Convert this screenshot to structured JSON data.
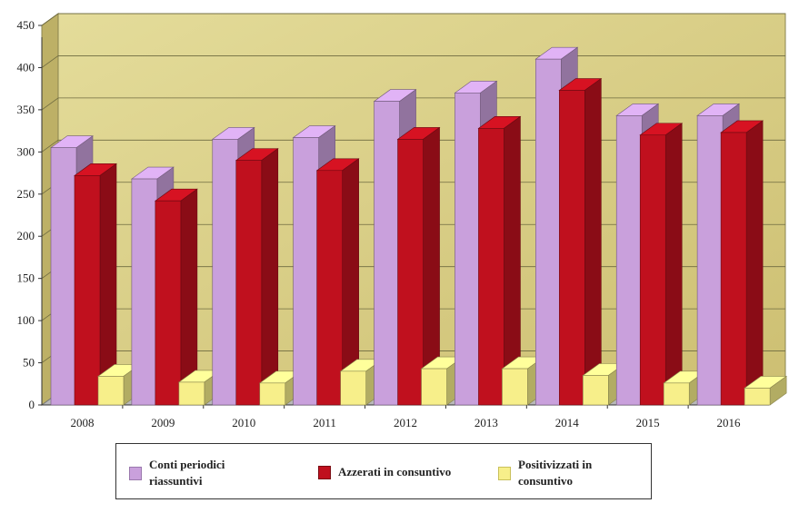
{
  "chart_data": {
    "type": "bar",
    "title": "",
    "xlabel": "",
    "ylabel": "",
    "ylim": [
      0,
      450
    ],
    "yticks": [
      0,
      50,
      100,
      150,
      200,
      250,
      300,
      350,
      400,
      450
    ],
    "categories": [
      "2008",
      "2009",
      "2010",
      "2011",
      "2012",
      "2013",
      "2014",
      "2015",
      "2016"
    ],
    "series": [
      {
        "name": "Conti periodici riassuntivi",
        "color": "#c9a0dc",
        "values": [
          305,
          268,
          315,
          317,
          360,
          370,
          410,
          343,
          343
        ]
      },
      {
        "name": "Azzerati in consuntivo",
        "color": "#c0101e",
        "values": [
          272,
          242,
          290,
          278,
          315,
          328,
          373,
          320,
          323
        ]
      },
      {
        "name": "Positivizzati in consuntivo",
        "color": "#f7ef8a",
        "values": [
          34,
          27,
          26,
          40,
          43,
          43,
          35,
          26,
          20
        ]
      }
    ],
    "grid": true,
    "legend_position": "bottom",
    "plot_background": "#d8d28e"
  },
  "legend": {
    "item1_line1": "Conti periodici",
    "item1_line2": "riassuntivi",
    "item2": "Azzerati in consuntivo",
    "item3_line1": "Positivizzati in",
    "item3_line2": "consuntivo"
  }
}
